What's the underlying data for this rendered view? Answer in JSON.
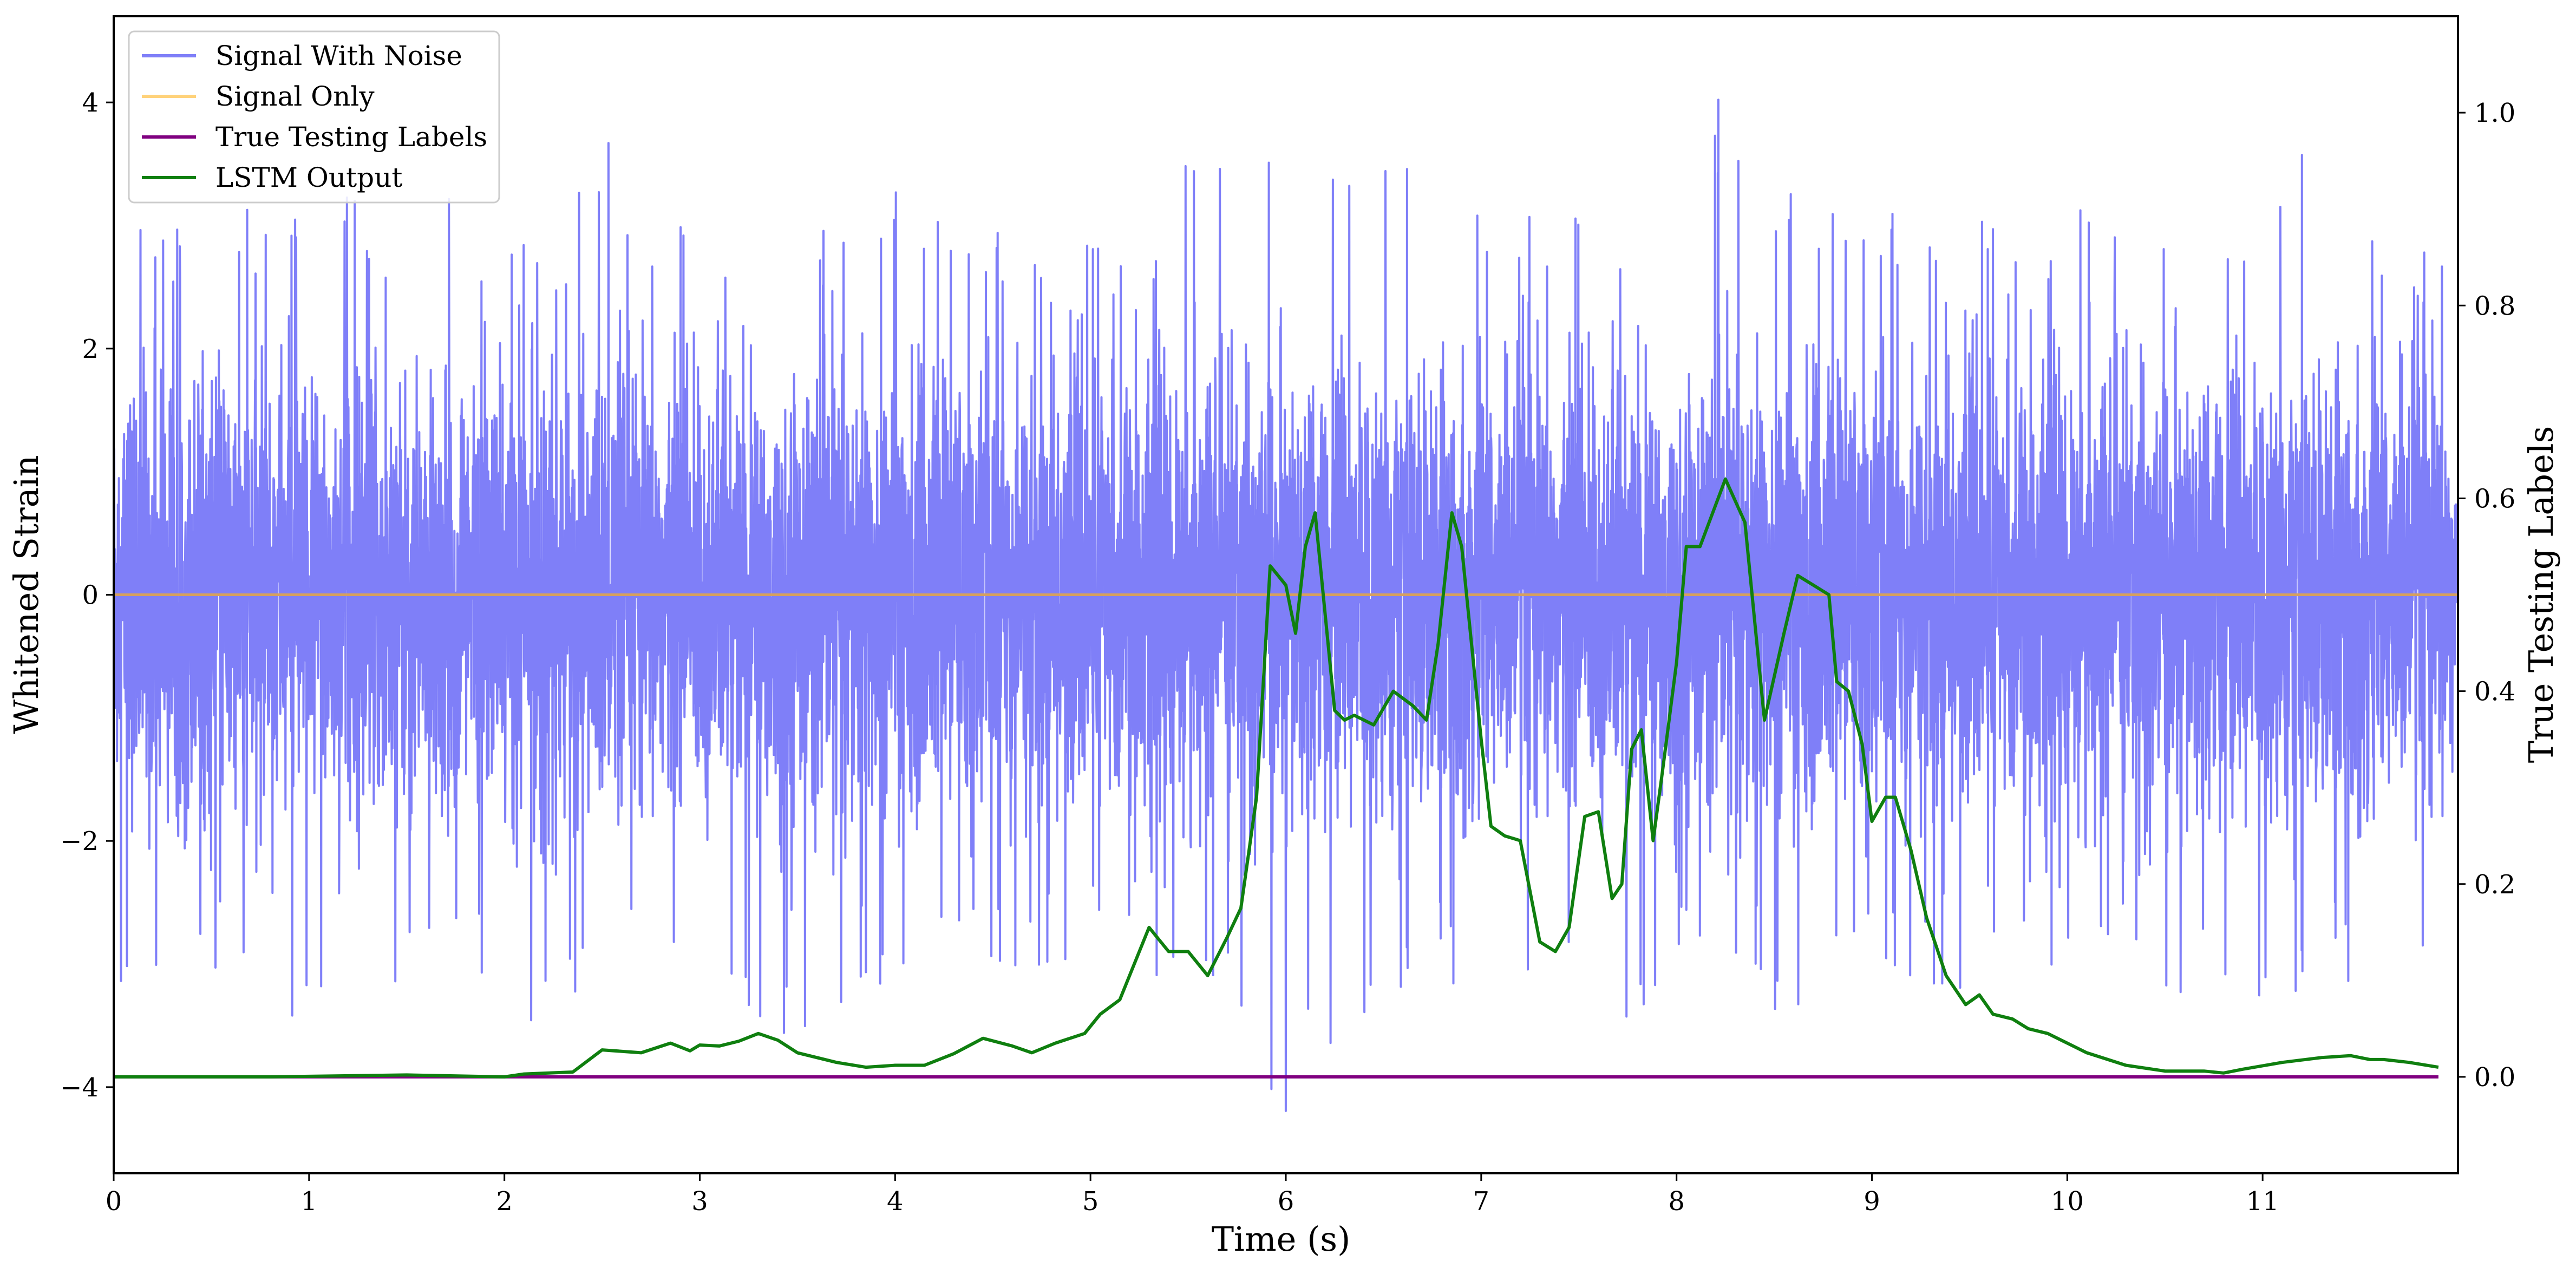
{
  "chart_data": {
    "type": "line",
    "title": "",
    "xlabel": "Time (s)",
    "ylabel": "Whitened Strain",
    "ylabel_right": "True Testing Labels",
    "xlim": [
      0,
      12
    ],
    "ylim": [
      -4.7,
      4.7
    ],
    "ylim_right": [
      -0.1,
      1.1
    ],
    "x_ticks": [
      "0",
      "1",
      "2",
      "3",
      "4",
      "5",
      "6",
      "7",
      "8",
      "9",
      "10",
      "11"
    ],
    "y_ticks": [
      "−4",
      "−2",
      "0",
      "2",
      "4"
    ],
    "y_ticks_right": [
      "0.0",
      "0.2",
      "0.4",
      "0.6",
      "0.8",
      "1.0"
    ],
    "grid": false,
    "legend_position": "top-left",
    "legend": [
      "Signal With Noise",
      "Signal Only",
      "True Testing Labels",
      "LSTM Output"
    ],
    "colors": {
      "signal_with_noise": "#7f7ff8",
      "signal_only": "#ffd27a",
      "true_labels": "#800080",
      "lstm_output": "#0f7f0f"
    },
    "series": [
      {
        "name": "Signal With Noise",
        "axis": "left",
        "description_note": "dense white-noise trace, roughly ±1 band with spikes up to about ±4",
        "envelope_upper": [
          [
            0.0,
            3.3
          ],
          [
            0.1,
            2.9
          ],
          [
            0.25,
            3.2
          ],
          [
            0.5,
            3.1
          ],
          [
            1.0,
            3.4
          ],
          [
            1.5,
            3.0
          ],
          [
            1.65,
            3.4
          ],
          [
            2.0,
            2.7
          ],
          [
            2.5,
            3.8
          ],
          [
            3.0,
            3.2
          ],
          [
            3.5,
            3.0
          ],
          [
            4.0,
            3.5
          ],
          [
            4.5,
            3.2
          ],
          [
            5.0,
            3.0
          ],
          [
            5.6,
            3.8
          ],
          [
            6.0,
            3.9
          ],
          [
            6.5,
            3.6
          ],
          [
            7.0,
            3.3
          ],
          [
            7.5,
            3.4
          ],
          [
            8.0,
            3.0
          ],
          [
            8.2,
            4.3
          ],
          [
            8.5,
            3.5
          ],
          [
            9.0,
            3.4
          ],
          [
            9.5,
            3.2
          ],
          [
            10.0,
            3.3
          ],
          [
            10.5,
            3.1
          ],
          [
            11.0,
            3.0
          ],
          [
            11.25,
            3.8
          ],
          [
            11.5,
            3.1
          ],
          [
            12.0,
            3.0
          ]
        ],
        "envelope_lower": [
          [
            0.0,
            -3.3
          ],
          [
            0.25,
            -3.8
          ],
          [
            0.5,
            -3.0
          ],
          [
            0.9,
            -3.9
          ],
          [
            1.5,
            -3.3
          ],
          [
            2.0,
            -3.0
          ],
          [
            2.15,
            -4.0
          ],
          [
            2.5,
            -3.1
          ],
          [
            3.0,
            -3.2
          ],
          [
            3.6,
            -4.0
          ],
          [
            4.0,
            -3.0
          ],
          [
            4.5,
            -3.2
          ],
          [
            5.0,
            -3.0
          ],
          [
            5.5,
            -3.2
          ],
          [
            6.0,
            -4.2
          ],
          [
            6.25,
            -3.9
          ],
          [
            6.5,
            -3.3
          ],
          [
            7.0,
            -3.1
          ],
          [
            7.5,
            -3.4
          ],
          [
            7.65,
            -4.1
          ],
          [
            8.0,
            -3.0
          ],
          [
            8.5,
            -3.4
          ],
          [
            9.0,
            -3.2
          ],
          [
            9.5,
            -3.3
          ],
          [
            10.0,
            -3.0
          ],
          [
            10.5,
            -3.2
          ],
          [
            11.0,
            -3.4
          ],
          [
            11.5,
            -3.1
          ],
          [
            12.0,
            -3.0
          ]
        ]
      },
      {
        "name": "Signal Only",
        "axis": "left",
        "x": [
          0,
          12
        ],
        "y": [
          0,
          0
        ]
      },
      {
        "name": "True Testing Labels",
        "axis": "right",
        "x": [
          0,
          11.9
        ],
        "y": [
          0,
          0
        ]
      },
      {
        "name": "LSTM Output",
        "axis": "right",
        "points": [
          [
            0.0,
            0.0
          ],
          [
            0.8,
            0.0
          ],
          [
            1.5,
            0.002
          ],
          [
            2.0,
            0.0
          ],
          [
            2.1,
            0.003
          ],
          [
            2.35,
            0.005
          ],
          [
            2.5,
            0.028
          ],
          [
            2.7,
            0.025
          ],
          [
            2.85,
            0.035
          ],
          [
            2.95,
            0.027
          ],
          [
            3.0,
            0.033
          ],
          [
            3.1,
            0.032
          ],
          [
            3.2,
            0.037
          ],
          [
            3.3,
            0.045
          ],
          [
            3.4,
            0.038
          ],
          [
            3.5,
            0.025
          ],
          [
            3.7,
            0.015
          ],
          [
            3.85,
            0.01
          ],
          [
            4.0,
            0.012
          ],
          [
            4.15,
            0.012
          ],
          [
            4.3,
            0.024
          ],
          [
            4.45,
            0.04
          ],
          [
            4.6,
            0.032
          ],
          [
            4.7,
            0.025
          ],
          [
            4.82,
            0.035
          ],
          [
            4.97,
            0.045
          ],
          [
            5.05,
            0.065
          ],
          [
            5.15,
            0.08
          ],
          [
            5.3,
            0.155
          ],
          [
            5.4,
            0.13
          ],
          [
            5.5,
            0.13
          ],
          [
            5.6,
            0.105
          ],
          [
            5.7,
            0.145
          ],
          [
            5.77,
            0.175
          ],
          [
            5.85,
            0.29
          ],
          [
            5.92,
            0.53
          ],
          [
            6.0,
            0.51
          ],
          [
            6.05,
            0.46
          ],
          [
            6.1,
            0.55
          ],
          [
            6.15,
            0.585
          ],
          [
            6.25,
            0.38
          ],
          [
            6.3,
            0.37
          ],
          [
            6.35,
            0.375
          ],
          [
            6.45,
            0.365
          ],
          [
            6.55,
            0.4
          ],
          [
            6.65,
            0.385
          ],
          [
            6.72,
            0.37
          ],
          [
            6.78,
            0.45
          ],
          [
            6.85,
            0.585
          ],
          [
            6.9,
            0.55
          ],
          [
            7.0,
            0.35
          ],
          [
            7.05,
            0.26
          ],
          [
            7.12,
            0.25
          ],
          [
            7.2,
            0.245
          ],
          [
            7.3,
            0.14
          ],
          [
            7.38,
            0.13
          ],
          [
            7.45,
            0.155
          ],
          [
            7.53,
            0.27
          ],
          [
            7.6,
            0.275
          ],
          [
            7.67,
            0.185
          ],
          [
            7.72,
            0.2
          ],
          [
            7.77,
            0.34
          ],
          [
            7.82,
            0.36
          ],
          [
            7.88,
            0.245
          ],
          [
            7.93,
            0.32
          ],
          [
            8.0,
            0.43
          ],
          [
            8.05,
            0.55
          ],
          [
            8.12,
            0.55
          ],
          [
            8.25,
            0.62
          ],
          [
            8.35,
            0.575
          ],
          [
            8.45,
            0.37
          ],
          [
            8.55,
            0.46
          ],
          [
            8.62,
            0.52
          ],
          [
            8.7,
            0.51
          ],
          [
            8.78,
            0.5
          ],
          [
            8.82,
            0.41
          ],
          [
            8.88,
            0.4
          ],
          [
            8.95,
            0.345
          ],
          [
            9.0,
            0.265
          ],
          [
            9.07,
            0.29
          ],
          [
            9.12,
            0.29
          ],
          [
            9.2,
            0.235
          ],
          [
            9.28,
            0.165
          ],
          [
            9.38,
            0.105
          ],
          [
            9.48,
            0.075
          ],
          [
            9.55,
            0.085
          ],
          [
            9.62,
            0.065
          ],
          [
            9.72,
            0.06
          ],
          [
            9.8,
            0.05
          ],
          [
            9.9,
            0.045
          ],
          [
            10.0,
            0.035
          ],
          [
            10.1,
            0.025
          ],
          [
            10.3,
            0.012
          ],
          [
            10.5,
            0.006
          ],
          [
            10.7,
            0.006
          ],
          [
            10.8,
            0.004
          ],
          [
            10.9,
            0.008
          ],
          [
            11.1,
            0.015
          ],
          [
            11.3,
            0.02
          ],
          [
            11.45,
            0.022
          ],
          [
            11.55,
            0.018
          ],
          [
            11.62,
            0.018
          ],
          [
            11.75,
            0.015
          ],
          [
            11.9,
            0.01
          ]
        ]
      }
    ]
  }
}
